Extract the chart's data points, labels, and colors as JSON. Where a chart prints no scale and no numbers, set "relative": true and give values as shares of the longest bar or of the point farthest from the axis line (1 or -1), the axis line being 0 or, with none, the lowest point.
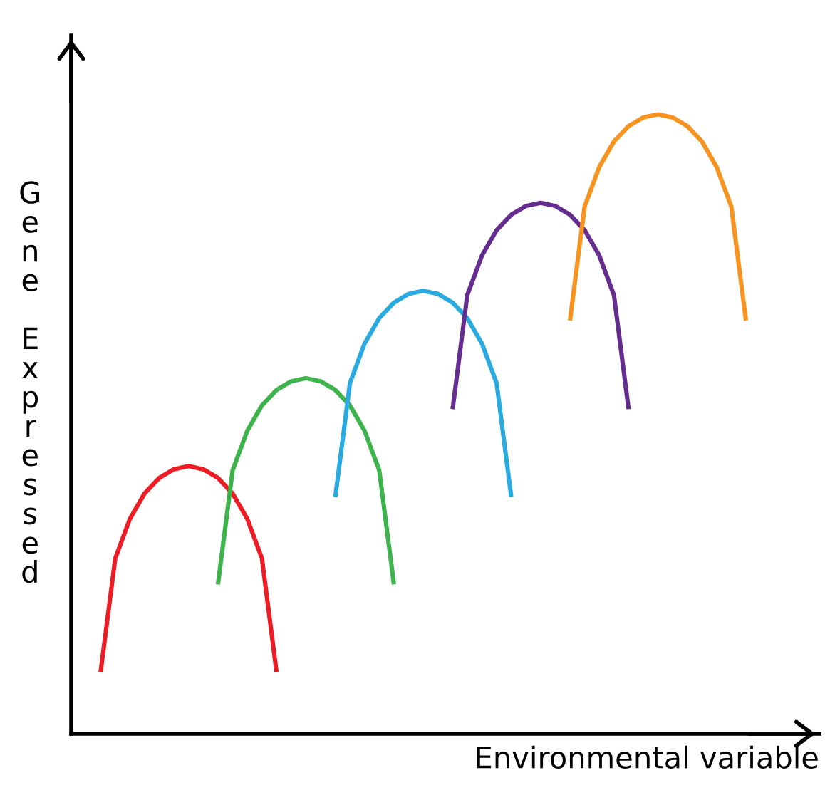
{
  "chart_data": {
    "type": "line",
    "relative": true,
    "xlabel": "Environmental variable",
    "ylabel": "Gene Expressed",
    "marker": "none",
    "line_style": "solid",
    "categories": [
      null,
      null,
      null,
      null,
      null,
      null,
      null,
      null,
      null,
      null,
      null,
      null,
      null,
      null,
      null,
      null,
      null,
      null,
      null,
      null,
      null,
      null,
      null,
      null,
      null,
      null,
      null,
      null,
      null,
      null,
      null,
      null,
      null,
      null,
      null,
      null,
      null,
      null,
      null,
      null,
      null,
      null,
      null,
      null,
      null,
      null,
      null,
      null,
      null,
      null,
      null,
      null
    ],
    "series": [
      {
        "color": "#ee1c24",
        "values": [
          null,
          null,
          0.099,
          0.283,
          0.347,
          0.388,
          0.413,
          0.427,
          0.432,
          0.427,
          0.413,
          0.388,
          0.347,
          0.283,
          0.099,
          null,
          null,
          null,
          null,
          null,
          null,
          null,
          null,
          null,
          null,
          null,
          null,
          null,
          null,
          null,
          null,
          null,
          null,
          null,
          null,
          null,
          null,
          null,
          null,
          null,
          null,
          null,
          null,
          null,
          null,
          null,
          null,
          null,
          null,
          null,
          null,
          null
        ]
      },
      {
        "color": "#3cb44b",
        "values": [
          null,
          null,
          null,
          null,
          null,
          null,
          null,
          null,
          null,
          null,
          0.241,
          0.425,
          0.489,
          0.53,
          0.555,
          0.569,
          0.574,
          0.569,
          0.555,
          0.53,
          0.489,
          0.425,
          0.241,
          null,
          null,
          null,
          null,
          null,
          null,
          null,
          null,
          null,
          null,
          null,
          null,
          null,
          null,
          null,
          null,
          null,
          null,
          null,
          null,
          null,
          null,
          null,
          null,
          null,
          null,
          null,
          null,
          null
        ]
      },
      {
        "color": "#29abe2",
        "values": [
          null,
          null,
          null,
          null,
          null,
          null,
          null,
          null,
          null,
          null,
          null,
          null,
          null,
          null,
          null,
          null,
          null,
          null,
          0.382,
          0.566,
          0.63,
          0.671,
          0.696,
          0.71,
          0.715,
          0.71,
          0.696,
          0.671,
          0.63,
          0.566,
          0.382,
          null,
          null,
          null,
          null,
          null,
          null,
          null,
          null,
          null,
          null,
          null,
          null,
          null,
          null,
          null,
          null,
          null,
          null,
          null,
          null,
          null
        ]
      },
      {
        "color": "#662d91",
        "values": [
          null,
          null,
          null,
          null,
          null,
          null,
          null,
          null,
          null,
          null,
          null,
          null,
          null,
          null,
          null,
          null,
          null,
          null,
          null,
          null,
          null,
          null,
          null,
          null,
          null,
          null,
          0.524,
          0.708,
          0.772,
          0.813,
          0.838,
          0.852,
          0.857,
          0.852,
          0.838,
          0.813,
          0.772,
          0.708,
          0.524,
          null,
          null,
          null,
          null,
          null,
          null,
          null,
          null,
          null,
          null,
          null,
          null,
          null
        ]
      },
      {
        "color": "#f7931e",
        "values": [
          null,
          null,
          null,
          null,
          null,
          null,
          null,
          null,
          null,
          null,
          null,
          null,
          null,
          null,
          null,
          null,
          null,
          null,
          null,
          null,
          null,
          null,
          null,
          null,
          null,
          null,
          null,
          null,
          null,
          null,
          null,
          null,
          null,
          null,
          0.667,
          0.851,
          0.915,
          0.956,
          0.981,
          0.995,
          1.0,
          0.995,
          0.981,
          0.956,
          0.915,
          0.851,
          0.667,
          null,
          null,
          null,
          null,
          null
        ]
      }
    ]
  }
}
